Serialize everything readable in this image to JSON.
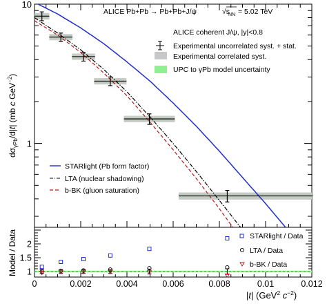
{
  "chart_data": [
    {
      "type": "line",
      "title": "ALICE Pb+Pb → Pb+Pb+J/ψ",
      "energy_label": "√s",
      "energy_sub": "NN",
      "energy_value": "= 5.02 TeV",
      "ylabel": "dσγPb/d|t| (mb c² GeV⁻²)",
      "ylabel_parts": {
        "a": "dσ",
        "sub": "γPb",
        "b": "/d|",
        "t": "t",
        "c": "| (mb ",
        "cc": "c",
        "d": " GeV",
        "sup": "−2",
        "e": ")"
      },
      "yscale": "log",
      "ylim": [
        0.25,
        10
      ],
      "xlim": [
        0,
        0.012
      ],
      "yticks": [
        {
          "value": 1,
          "label": "1"
        },
        {
          "value": 10,
          "label": "10"
        }
      ],
      "legend_text": {
        "header": "ALICE coherent J/ψ, |y|<0.8",
        "uncorr": "Experimental uncorrelated syst. + stat.",
        "corr": "Experimental correlated syst.",
        "upc": "UPC to γPb model uncertainty"
      },
      "data": {
        "name": "ALICE coherent J/ψ",
        "x": [
          0.00032,
          0.00114,
          0.00212,
          0.00328,
          0.00497,
          0.00834
        ],
        "xerr_low": [
          0.00032,
          0.0005,
          0.0005,
          0.0007,
          0.0011,
          0.0021
        ],
        "xerr_high": [
          0.00032,
          0.0005,
          0.0005,
          0.0007,
          0.0011,
          0.0037
        ],
        "y": [
          8.2,
          5.8,
          4.2,
          2.8,
          1.5,
          0.42
        ],
        "err": [
          0.6,
          0.4,
          0.3,
          0.2,
          0.13,
          0.04
        ],
        "corr_syst": [
          0.45,
          0.3,
          0.22,
          0.15,
          0.08,
          0.025
        ],
        "upc_band": [
          0.35,
          0.22,
          0.16,
          0.11,
          0.06,
          0.02
        ]
      },
      "models": [
        {
          "name": "STARlight (Pb form factor)",
          "color": "#1f2fc8",
          "style": "solid",
          "x": [
            0,
            0.001,
            0.002,
            0.003,
            0.004,
            0.005,
            0.006,
            0.007,
            0.008,
            0.009,
            0.01,
            0.011,
            0.012
          ],
          "y": [
            10.3,
            8.5,
            6.75,
            5.2,
            3.85,
            2.8,
            1.95,
            1.33,
            0.88,
            0.57,
            0.37,
            0.235,
            0.15
          ]
        },
        {
          "name": "LTA (nuclear shadowing)",
          "color": "#000000",
          "style": "dashdot",
          "x": [
            0,
            0.001,
            0.002,
            0.003,
            0.004,
            0.005,
            0.006,
            0.007,
            0.008,
            0.009,
            0.01
          ],
          "y": [
            8.0,
            6.2,
            4.7,
            3.4,
            2.35,
            1.55,
            1.0,
            0.63,
            0.39,
            0.24,
            0.145
          ]
        },
        {
          "name": "b-BK (gluon saturation)",
          "color": "#b01818",
          "style": "dashed",
          "x": [
            0,
            0.001,
            0.002,
            0.003,
            0.004,
            0.005,
            0.006,
            0.007,
            0.008,
            0.009,
            0.01
          ],
          "y": [
            7.6,
            6.0,
            4.5,
            3.2,
            2.2,
            1.42,
            0.9,
            0.56,
            0.34,
            0.2,
            0.12
          ]
        }
      ]
    },
    {
      "type": "scatter",
      "ylabel": "Model / Data",
      "xlabel_parts": {
        "a": "|",
        "t": "t",
        "b": "| (GeV",
        "sup": "2",
        "sp": " ",
        "c": "c",
        "sup2": "−2",
        "e": ")"
      },
      "xlim": [
        0,
        0.012
      ],
      "ylim": [
        0.8,
        2.6
      ],
      "xticks": [
        {
          "value": 0,
          "label": "0"
        },
        {
          "value": 0.002,
          "label": "0.002"
        },
        {
          "value": 0.004,
          "label": "0.004"
        },
        {
          "value": 0.006,
          "label": "0.006"
        },
        {
          "value": 0.008,
          "label": "0.008"
        },
        {
          "value": 0.01,
          "label": "0.01"
        },
        {
          "value": 0.012,
          "label": "0.012"
        }
      ],
      "yticks": [
        {
          "value": 1,
          "label": "1"
        },
        {
          "value": 1.5,
          "label": "1.5"
        },
        {
          "value": 2,
          "label": "2"
        }
      ],
      "reference": 1,
      "band": [
        0.97,
        1.03
      ],
      "x": [
        0.00032,
        0.00114,
        0.00212,
        0.00328,
        0.00497,
        0.00834
      ],
      "data_err": [
        0.07,
        0.07,
        0.07,
        0.07,
        0.09,
        0.1
      ],
      "series": [
        {
          "name": "STARlight / Data",
          "marker": "square",
          "color": "#1f2fc8",
          "values": [
            1.17,
            1.35,
            1.45,
            1.58,
            1.82,
            2.2
          ]
        },
        {
          "name": "LTA / Data",
          "marker": "circle",
          "color": "#000000",
          "values": [
            1.0,
            1.02,
            1.04,
            1.07,
            1.12,
            1.15
          ]
        },
        {
          "name": "b-BK / Data",
          "marker": "triangle-down",
          "color": "#b01818",
          "values": [
            0.95,
            0.98,
            0.98,
            0.98,
            0.97,
            0.85
          ]
        }
      ]
    }
  ]
}
